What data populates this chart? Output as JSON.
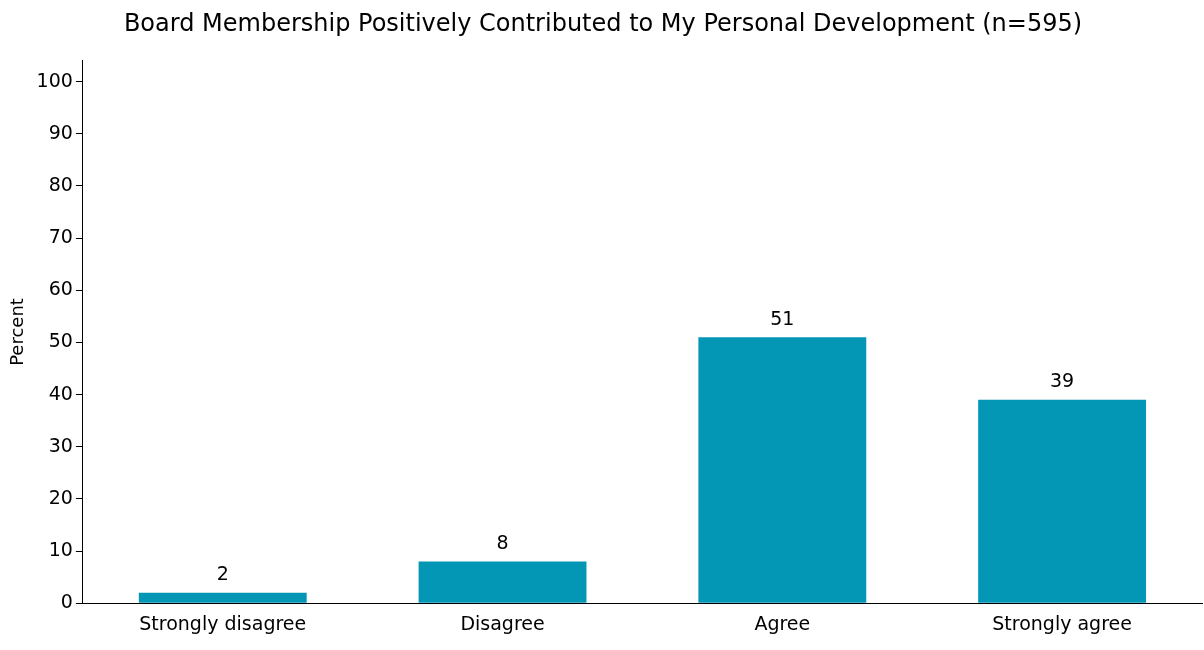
{
  "chart_data": {
    "type": "bar",
    "title": "Board Membership Positively Contributed to My Personal Development (n=595)",
    "ylabel": "Percent",
    "categories": [
      "Strongly disagree",
      "Disagree",
      "Agree",
      "Strongly agree"
    ],
    "values": [
      2,
      8,
      51,
      39
    ],
    "color": "#0396b5",
    "ylim": [
      0,
      104
    ],
    "yticks": [
      0,
      10,
      20,
      30,
      40,
      50,
      60,
      70,
      80,
      90,
      100
    ],
    "data_labels": true,
    "legend": false
  }
}
